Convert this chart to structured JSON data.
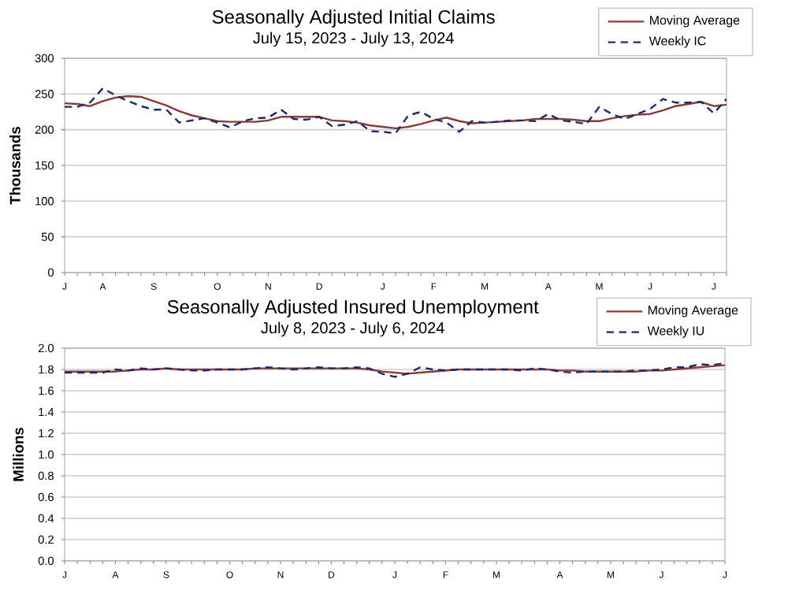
{
  "chart_data": [
    {
      "type": "line",
      "title": "Seasonally Adjusted Initial Claims",
      "subtitle": "July 15, 2023 - July 13, 2024",
      "ylabel": "Thousands",
      "categories": [
        "J",
        null,
        null,
        "A",
        null,
        null,
        null,
        "S",
        null,
        null,
        null,
        null,
        "O",
        null,
        null,
        null,
        "N",
        null,
        null,
        null,
        "D",
        null,
        null,
        null,
        null,
        "J",
        null,
        null,
        null,
        "F",
        null,
        null,
        null,
        "M",
        null,
        null,
        null,
        null,
        "A",
        null,
        null,
        null,
        "M",
        null,
        null,
        null,
        "J",
        null,
        null,
        null,
        null,
        "J",
        null
      ],
      "ylim": [
        0,
        300
      ],
      "yticks": [
        0,
        50,
        100,
        150,
        200,
        250,
        300
      ],
      "grid": "y",
      "legend": "top right",
      "series": [
        {
          "name": "Moving Average",
          "color": "#8b3a3a",
          "line_style": "solid",
          "values": [
            237,
            236,
            233,
            240,
            245,
            247,
            246,
            240,
            234,
            226,
            220,
            216,
            212,
            211,
            211,
            211,
            213,
            218,
            218,
            218,
            218,
            213,
            212,
            210,
            206,
            204,
            202,
            204,
            208,
            213,
            217,
            212,
            209,
            210,
            211,
            212,
            213,
            215,
            215,
            215,
            214,
            212,
            212,
            216,
            219,
            221,
            222,
            227,
            233,
            236,
            239,
            233,
            235
          ]
        },
        {
          "name": "Weekly IC",
          "color": "#1f2a6e",
          "line_style": "dashed",
          "values": [
            232,
            232,
            238,
            258,
            248,
            240,
            233,
            228,
            228,
            210,
            213,
            216,
            210,
            203,
            212,
            216,
            217,
            228,
            215,
            214,
            218,
            205,
            207,
            212,
            198,
            197,
            195,
            220,
            225,
            215,
            210,
            197,
            212,
            210,
            211,
            213,
            213,
            212,
            222,
            213,
            211,
            208,
            232,
            222,
            215,
            222,
            229,
            243,
            238,
            238,
            239,
            223,
            243
          ]
        }
      ]
    },
    {
      "type": "line",
      "title": "Seasonally Adjusted Insured Unemployment",
      "subtitle": "July 8, 2023 - July 6, 2024",
      "ylabel": "Millions",
      "categories": [
        "J",
        null,
        null,
        null,
        "A",
        null,
        null,
        null,
        "S",
        null,
        null,
        null,
        null,
        "O",
        null,
        null,
        null,
        "N",
        null,
        null,
        null,
        "D",
        null,
        null,
        null,
        null,
        "J",
        null,
        null,
        null,
        "F",
        null,
        null,
        null,
        "M",
        null,
        null,
        null,
        null,
        "A",
        null,
        null,
        null,
        "M",
        null,
        null,
        null,
        "J",
        null,
        null,
        null,
        null,
        "J"
      ],
      "ylim": [
        0,
        2
      ],
      "yticks": [
        {
          "value": 0,
          "label": "0.0"
        },
        {
          "value": 0.2,
          "label": "0.2"
        },
        {
          "value": 0.4,
          "label": "0.4"
        },
        {
          "value": 0.6,
          "label": "0.6"
        },
        {
          "value": 0.8,
          "label": "0.8"
        },
        {
          "value": 1,
          "label": "1.0"
        },
        {
          "value": 1.2,
          "label": "1.2"
        },
        {
          "value": 1.4,
          "label": "1.4"
        },
        {
          "value": 1.6,
          "label": "1.6"
        },
        {
          "value": 1.8,
          "label": "1.8"
        },
        {
          "value": 2,
          "label": "2.0"
        }
      ],
      "grid": "y",
      "legend": "top right",
      "series": [
        {
          "name": "Moving Average",
          "color": "#8b3a3a",
          "line_style": "solid",
          "values": [
            1.78,
            1.78,
            1.78,
            1.78,
            1.78,
            1.79,
            1.8,
            1.8,
            1.81,
            1.8,
            1.8,
            1.8,
            1.8,
            1.8,
            1.8,
            1.81,
            1.81,
            1.81,
            1.81,
            1.81,
            1.81,
            1.81,
            1.81,
            1.81,
            1.8,
            1.78,
            1.77,
            1.76,
            1.77,
            1.78,
            1.79,
            1.8,
            1.8,
            1.8,
            1.8,
            1.8,
            1.8,
            1.8,
            1.8,
            1.79,
            1.79,
            1.78,
            1.78,
            1.78,
            1.78,
            1.78,
            1.79,
            1.79,
            1.8,
            1.81,
            1.82,
            1.83,
            1.84
          ]
        },
        {
          "name": "Weekly IU",
          "color": "#1f2a6e",
          "line_style": "dashed",
          "values": [
            1.77,
            1.77,
            1.77,
            1.77,
            1.8,
            1.79,
            1.81,
            1.8,
            1.81,
            1.8,
            1.79,
            1.79,
            1.8,
            1.8,
            1.8,
            1.81,
            1.82,
            1.81,
            1.8,
            1.81,
            1.82,
            1.81,
            1.81,
            1.82,
            1.81,
            1.76,
            1.73,
            1.76,
            1.82,
            1.8,
            1.79,
            1.8,
            1.8,
            1.8,
            1.8,
            1.8,
            1.79,
            1.81,
            1.8,
            1.78,
            1.77,
            1.78,
            1.78,
            1.78,
            1.78,
            1.79,
            1.79,
            1.8,
            1.82,
            1.82,
            1.85,
            1.84,
            1.86
          ]
        }
      ]
    }
  ]
}
